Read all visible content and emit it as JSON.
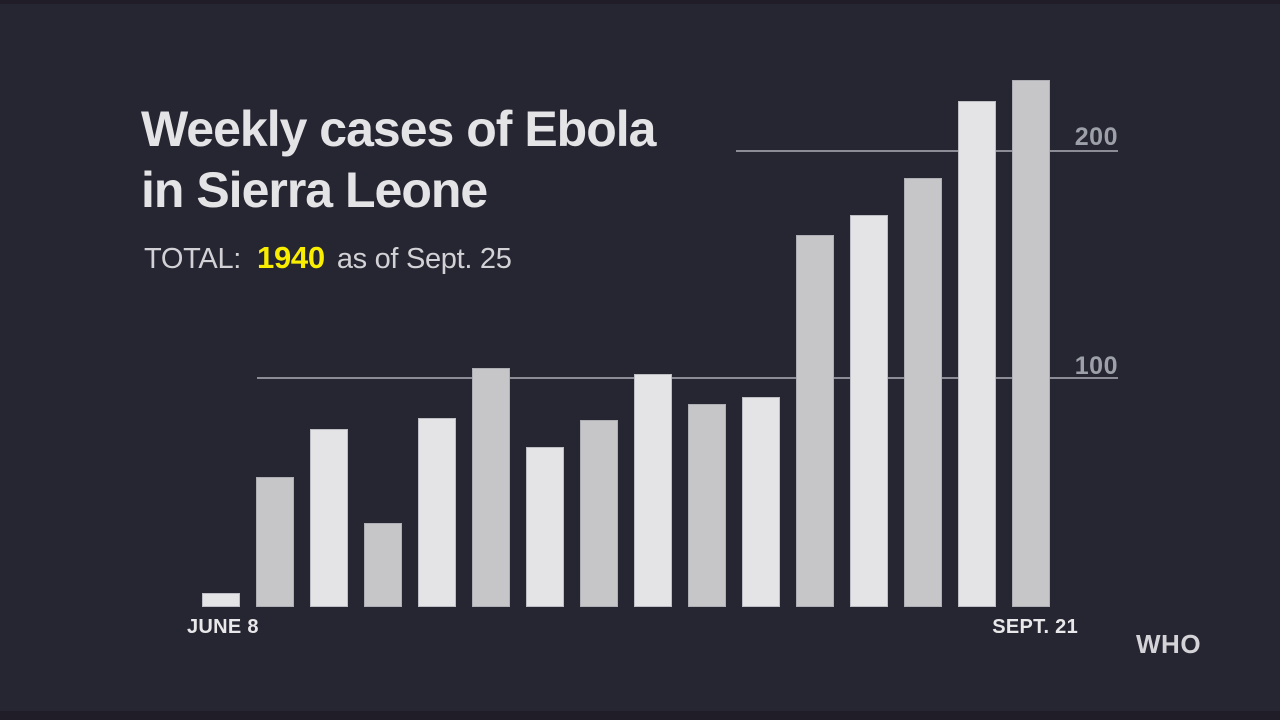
{
  "header": {
    "title_line1": "Weekly cases of Ebola",
    "title_line2": "in Sierra Leone",
    "total_label": "TOTAL:",
    "total_value": "1940",
    "total_suffix": "as of Sept. 25"
  },
  "chart_data": {
    "type": "bar",
    "title": "Weekly cases of Ebola in Sierra Leone",
    "categories": [
      "JUNE 8",
      "",
      "",
      "",
      "",
      "",
      "",
      "",
      "",
      "",
      "",
      "",
      "",
      "",
      "",
      "SEPT. 21"
    ],
    "values": [
      6,
      57,
      78,
      37,
      83,
      105,
      70,
      82,
      102,
      89,
      92,
      163,
      172,
      188,
      222,
      231
    ],
    "x_first_label": "JUNE 8",
    "x_last_label": "SEPT. 21",
    "xlabel": "",
    "ylabel": "",
    "yticks": [
      100,
      200
    ],
    "ylim": [
      0,
      240
    ],
    "grid": "horizontal gridlines at 100 and 200, drawn behind bars",
    "legend": "none",
    "bar_color_odd": "#e4e4e6",
    "bar_color_even": "#c6c6c8",
    "gridline_color": "#8c8c96",
    "tick_label_color": "#9da0a8",
    "background_color": "#262532",
    "accent_yellow": "#f9ee00"
  },
  "source": {
    "label": "WHO"
  }
}
